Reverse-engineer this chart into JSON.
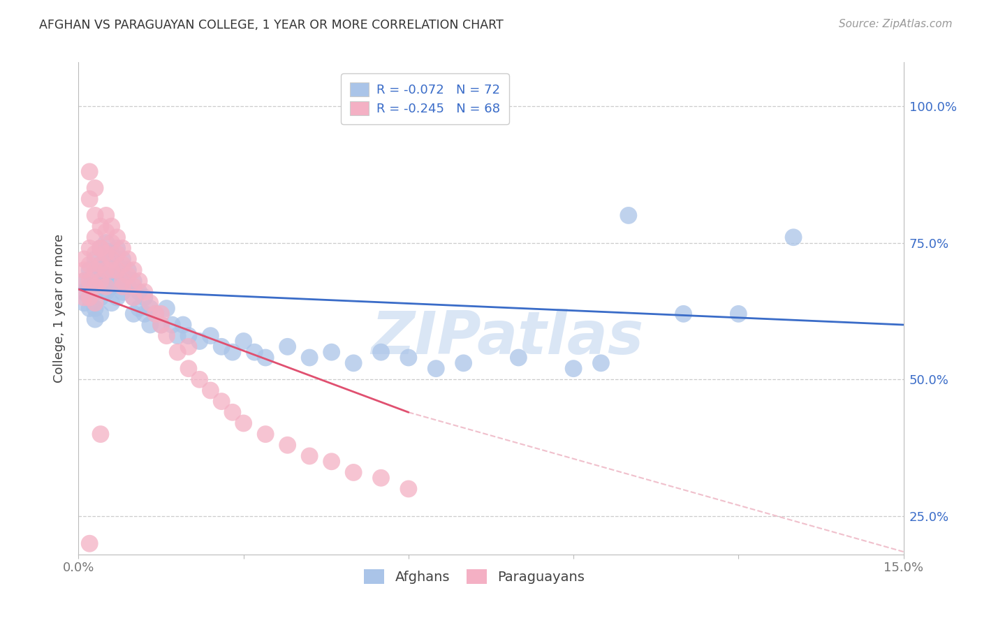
{
  "title": "AFGHAN VS PARAGUAYAN COLLEGE, 1 YEAR OR MORE CORRELATION CHART",
  "source_text": "Source: ZipAtlas.com",
  "ylabel": "College, 1 year or more",
  "xlim": [
    0.0,
    0.15
  ],
  "ylim": [
    0.18,
    1.08
  ],
  "xtick_vals": [
    0.0,
    0.03,
    0.06,
    0.09,
    0.12,
    0.15
  ],
  "xticklabels": [
    "0.0%",
    "",
    "",
    "",
    "",
    "15.0%"
  ],
  "ytick_vals": [
    0.25,
    0.5,
    0.75,
    1.0
  ],
  "yticklabels_right": [
    "25.0%",
    "50.0%",
    "75.0%",
    "100.0%"
  ],
  "afghan_color": "#aac4e8",
  "paraguayan_color": "#f4b0c4",
  "afghan_line_color": "#3a6cc8",
  "paraguayan_line_color": "#e05070",
  "dashed_line_color": "#c8d8ee",
  "dashed_line_color2": "#f0c0cc",
  "legend_text_color": "#3a6cc8",
  "legend_r_afghan": "R = -0.072",
  "legend_n_afghan": "N = 72",
  "legend_r_paraguayan": "R = -0.245",
  "legend_n_paraguayan": "N = 68",
  "background_color": "#ffffff",
  "grid_color": "#cccccc",
  "watermark_text": "ZIPatlas",
  "watermark_color": "#dae6f5",
  "title_color": "#333333",
  "source_color": "#999999",
  "tick_color": "#777777",
  "spine_color": "#bbbbbb",
  "afghan_x": [
    0.001,
    0.001,
    0.001,
    0.002,
    0.002,
    0.002,
    0.002,
    0.003,
    0.003,
    0.003,
    0.003,
    0.003,
    0.004,
    0.004,
    0.004,
    0.004,
    0.004,
    0.005,
    0.005,
    0.005,
    0.005,
    0.006,
    0.006,
    0.006,
    0.006,
    0.007,
    0.007,
    0.007,
    0.007,
    0.008,
    0.008,
    0.008,
    0.009,
    0.009,
    0.01,
    0.01,
    0.01,
    0.011,
    0.011,
    0.012,
    0.012,
    0.013,
    0.013,
    0.014,
    0.015,
    0.016,
    0.017,
    0.018,
    0.019,
    0.02,
    0.022,
    0.024,
    0.026,
    0.028,
    0.03,
    0.032,
    0.034,
    0.038,
    0.042,
    0.046,
    0.05,
    0.055,
    0.06,
    0.065,
    0.07,
    0.08,
    0.09,
    0.095,
    0.1,
    0.11,
    0.12,
    0.13
  ],
  "afghan_y": [
    0.68,
    0.66,
    0.64,
    0.7,
    0.67,
    0.65,
    0.63,
    0.72,
    0.69,
    0.66,
    0.63,
    0.61,
    0.74,
    0.71,
    0.68,
    0.65,
    0.62,
    0.75,
    0.72,
    0.69,
    0.66,
    0.73,
    0.7,
    0.67,
    0.64,
    0.74,
    0.71,
    0.68,
    0.65,
    0.72,
    0.69,
    0.66,
    0.7,
    0.67,
    0.68,
    0.65,
    0.62,
    0.66,
    0.63,
    0.65,
    0.62,
    0.63,
    0.6,
    0.62,
    0.6,
    0.63,
    0.6,
    0.58,
    0.6,
    0.58,
    0.57,
    0.58,
    0.56,
    0.55,
    0.57,
    0.55,
    0.54,
    0.56,
    0.54,
    0.55,
    0.53,
    0.55,
    0.54,
    0.52,
    0.53,
    0.54,
    0.52,
    0.53,
    0.8,
    0.62,
    0.62,
    0.76
  ],
  "paraguayan_x": [
    0.001,
    0.001,
    0.001,
    0.001,
    0.002,
    0.002,
    0.002,
    0.002,
    0.003,
    0.003,
    0.003,
    0.003,
    0.003,
    0.004,
    0.004,
    0.004,
    0.004,
    0.005,
    0.005,
    0.005,
    0.005,
    0.005,
    0.006,
    0.006,
    0.006,
    0.007,
    0.007,
    0.007,
    0.008,
    0.008,
    0.008,
    0.009,
    0.009,
    0.01,
    0.01,
    0.011,
    0.012,
    0.013,
    0.014,
    0.015,
    0.016,
    0.018,
    0.02,
    0.022,
    0.024,
    0.026,
    0.028,
    0.03,
    0.034,
    0.038,
    0.042,
    0.046,
    0.05,
    0.055,
    0.06,
    0.02,
    0.015,
    0.01,
    0.008,
    0.006,
    0.004,
    0.004,
    0.003,
    0.003,
    0.002,
    0.002,
    0.002,
    0.002
  ],
  "paraguayan_y": [
    0.72,
    0.7,
    0.68,
    0.65,
    0.74,
    0.71,
    0.68,
    0.65,
    0.76,
    0.73,
    0.7,
    0.67,
    0.64,
    0.78,
    0.74,
    0.71,
    0.68,
    0.8,
    0.77,
    0.73,
    0.7,
    0.67,
    0.78,
    0.75,
    0.72,
    0.76,
    0.73,
    0.7,
    0.74,
    0.71,
    0.68,
    0.72,
    0.69,
    0.7,
    0.67,
    0.68,
    0.66,
    0.64,
    0.62,
    0.6,
    0.58,
    0.55,
    0.52,
    0.5,
    0.48,
    0.46,
    0.44,
    0.42,
    0.4,
    0.38,
    0.36,
    0.35,
    0.33,
    0.32,
    0.3,
    0.56,
    0.62,
    0.65,
    0.67,
    0.7,
    0.74,
    0.4,
    0.85,
    0.8,
    0.88,
    0.83,
    0.2,
    0.15
  ]
}
